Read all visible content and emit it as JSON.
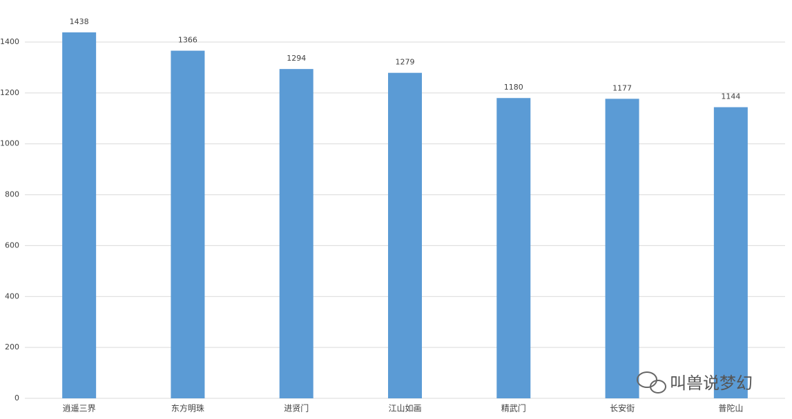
{
  "chart_data": {
    "type": "bar",
    "categories": [
      "逍遥三界",
      "东方明珠",
      "进贤门",
      "江山如画",
      "精武门",
      "长安街",
      "普陀山"
    ],
    "values": [
      1438,
      1366,
      1294,
      1279,
      1180,
      1177,
      1144
    ],
    "color": "#5b9bd5",
    "ylim": [
      0,
      1400
    ],
    "yticks": [
      0,
      200,
      400,
      600,
      800,
      1000,
      1200,
      1400
    ],
    "grid": true
  },
  "watermark": "叫兽说梦幻"
}
